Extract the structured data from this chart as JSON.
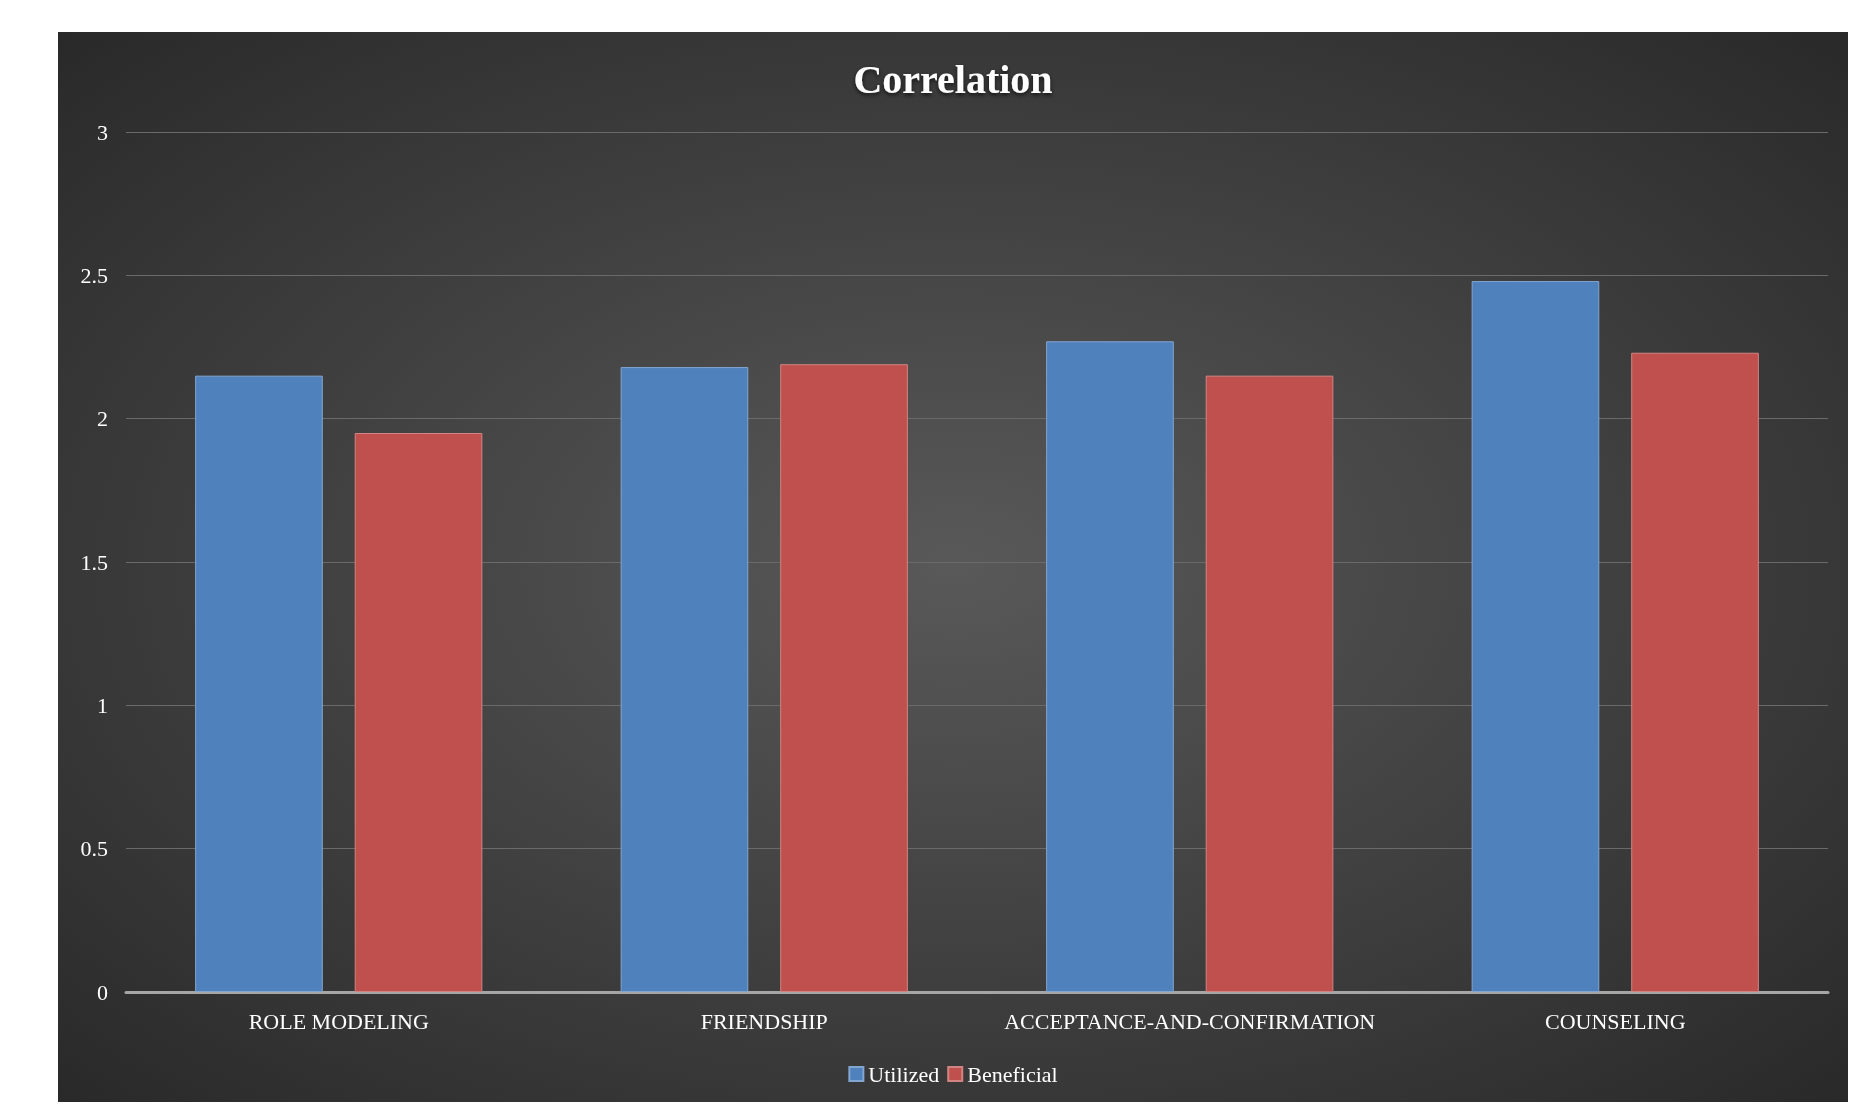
{
  "chart_data": {
    "type": "bar",
    "title": "Correlation",
    "categories": [
      "ROLE MODELING",
      "FRIENDSHIP",
      "ACCEPTANCE-AND-CONFIRMATION",
      "COUNSELING"
    ],
    "series": [
      {
        "name": "Utilized",
        "color": "#4f81bd",
        "values": [
          2.15,
          2.18,
          2.27,
          2.48
        ]
      },
      {
        "name": "Beneficial",
        "color": "#c0504d",
        "values": [
          1.95,
          2.19,
          2.15,
          2.23
        ]
      }
    ],
    "ylim": [
      0,
      3
    ],
    "yticks": [
      0,
      0.5,
      1,
      1.5,
      2,
      2.5,
      3
    ],
    "grid": "y",
    "legend": "bottom"
  }
}
